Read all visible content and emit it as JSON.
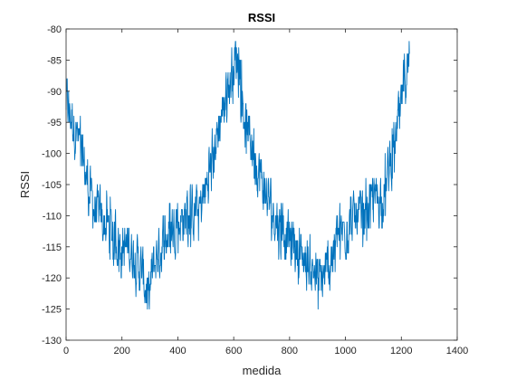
{
  "chart_data": {
    "type": "line",
    "title": "RSSI",
    "xlabel": "medida",
    "ylabel": "RSSI",
    "xlim": [
      0,
      1400
    ],
    "ylim": [
      -130,
      -80
    ],
    "xticks": [
      0,
      200,
      400,
      600,
      800,
      1000,
      1200,
      1400
    ],
    "yticks": [
      -130,
      -125,
      -120,
      -115,
      -110,
      -105,
      -100,
      -95,
      -90,
      -85,
      -80
    ],
    "xtick_labels": [
      "0",
      "200",
      "400",
      "600",
      "800",
      "1000",
      "1200",
      "1400"
    ],
    "ytick_labels": [
      "-130",
      "-125",
      "-120",
      "-115",
      "-110",
      "-105",
      "-100",
      "-95",
      "-90",
      "-85",
      "-80"
    ],
    "grid": false,
    "series": [
      {
        "name": "RSSI",
        "color": "#0072BD",
        "n_points": 1230,
        "trend": [
          [
            0,
            -92
          ],
          [
            20,
            -94
          ],
          [
            40,
            -97
          ],
          [
            60,
            -101
          ],
          [
            80,
            -106
          ],
          [
            100,
            -109
          ],
          [
            130,
            -111
          ],
          [
            160,
            -113
          ],
          [
            200,
            -115
          ],
          [
            240,
            -116
          ],
          [
            270,
            -119
          ],
          [
            295,
            -123
          ],
          [
            310,
            -119
          ],
          [
            330,
            -116
          ],
          [
            360,
            -113
          ],
          [
            400,
            -111
          ],
          [
            440,
            -110
          ],
          [
            480,
            -109
          ],
          [
            510,
            -104
          ],
          [
            540,
            -97
          ],
          [
            565,
            -92
          ],
          [
            590,
            -88
          ],
          [
            612,
            -84
          ],
          [
            625,
            -89
          ],
          [
            640,
            -94
          ],
          [
            660,
            -98
          ],
          [
            690,
            -103
          ],
          [
            720,
            -107
          ],
          [
            760,
            -111
          ],
          [
            800,
            -114
          ],
          [
            850,
            -117
          ],
          [
            890,
            -119
          ],
          [
            915,
            -121
          ],
          [
            940,
            -118
          ],
          [
            980,
            -113
          ],
          [
            1020,
            -111
          ],
          [
            1060,
            -110
          ],
          [
            1100,
            -108
          ],
          [
            1140,
            -106
          ],
          [
            1170,
            -100
          ],
          [
            1195,
            -94
          ],
          [
            1210,
            -88
          ],
          [
            1230,
            -86
          ]
        ],
        "noise_amplitude": 4
      }
    ]
  }
}
